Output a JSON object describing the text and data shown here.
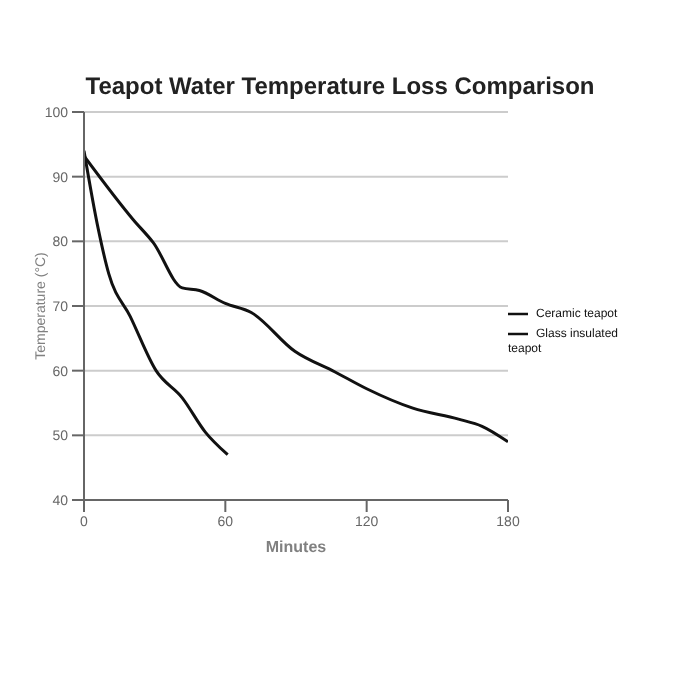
{
  "chart_data": {
    "type": "line",
    "title": "Teapot Water Temperature Loss Comparison",
    "xlabel": "Minutes",
    "ylabel": "Temperature (°C)",
    "series": [
      {
        "name": "Glass insulated teapot",
        "color": "#111111",
        "x": [
          0,
          6,
          10.5,
          19.6,
          30.6,
          41.7,
          51.5,
          61
        ],
        "values": [
          94,
          82,
          75,
          68.4,
          60,
          55.8,
          50.5,
          47
        ]
      },
      {
        "name": "Ceramic teapot",
        "color": "#111111",
        "x": [
          0,
          21,
          29.4,
          41.7,
          49,
          60,
          71,
          89.5,
          106.6,
          120,
          139.6,
          159,
          169,
          180
        ],
        "values": [
          93.2,
          83.3,
          79.8,
          72.8,
          72.4,
          70.4,
          69,
          63,
          59.8,
          57.2,
          54.2,
          52.5,
          51.4,
          49
        ]
      }
    ],
    "xlim": [
      0,
      180
    ],
    "xticks": [
      0,
      60,
      120,
      180
    ],
    "ylim": [
      40,
      100
    ],
    "yticks": [
      40,
      50,
      60,
      70,
      80,
      90,
      100
    ],
    "grid": "y",
    "legend": "right",
    "marker": "none",
    "line_style": "solid"
  }
}
